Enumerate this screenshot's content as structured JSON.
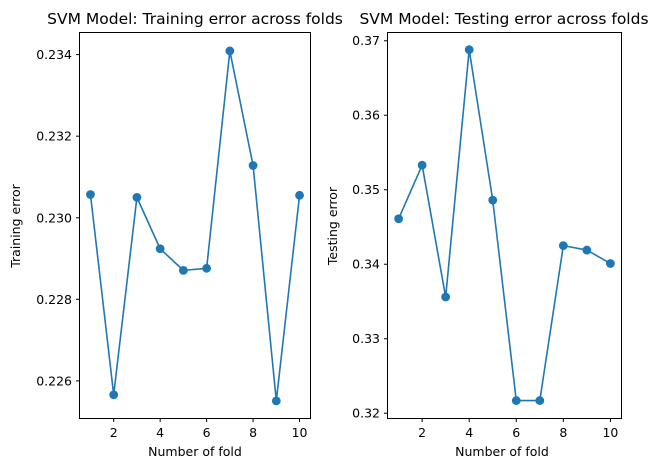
{
  "colors": {
    "series": "#1f77b4"
  },
  "chart_data": [
    {
      "type": "line",
      "title": "SVM Model: Training error across folds",
      "xlabel": "Number of fold",
      "ylabel": "Training error",
      "x": [
        1,
        2,
        3,
        4,
        5,
        6,
        7,
        8,
        9,
        10
      ],
      "values": [
        0.23057,
        0.22566,
        0.2305,
        0.22924,
        0.22871,
        0.22876,
        0.23409,
        0.23128,
        0.22551,
        0.23055
      ],
      "xlim": [
        0.55,
        10.45
      ],
      "ylim": [
        0.22509,
        0.23453
      ],
      "xticks": [
        2,
        4,
        6,
        8,
        10
      ],
      "xtick_labels": [
        "2",
        "4",
        "6",
        "8",
        "10"
      ],
      "yticks": [
        0.226,
        0.228,
        0.23,
        0.232,
        0.234
      ],
      "ytick_labels": [
        "0.226",
        "0.228",
        "0.230",
        "0.232",
        "0.234"
      ],
      "marker": "circle",
      "grid": false
    },
    {
      "type": "line",
      "title": "SVM Model: Testing error across folds",
      "xlabel": "Number of fold",
      "ylabel": "Testing error",
      "x": [
        1,
        2,
        3,
        4,
        5,
        6,
        7,
        8,
        9,
        10
      ],
      "values": [
        0.3461,
        0.3533,
        0.3356,
        0.3688,
        0.3486,
        0.3217,
        0.3217,
        0.3425,
        0.3419,
        0.3401
      ],
      "xlim": [
        0.55,
        10.45
      ],
      "ylim": [
        0.31936,
        0.37104
      ],
      "xticks": [
        2,
        4,
        6,
        8,
        10
      ],
      "xtick_labels": [
        "2",
        "4",
        "6",
        "8",
        "10"
      ],
      "yticks": [
        0.32,
        0.33,
        0.34,
        0.35,
        0.36,
        0.37
      ],
      "ytick_labels": [
        "0.32",
        "0.33",
        "0.34",
        "0.35",
        "0.36",
        "0.37"
      ],
      "marker": "circle",
      "grid": false
    }
  ]
}
